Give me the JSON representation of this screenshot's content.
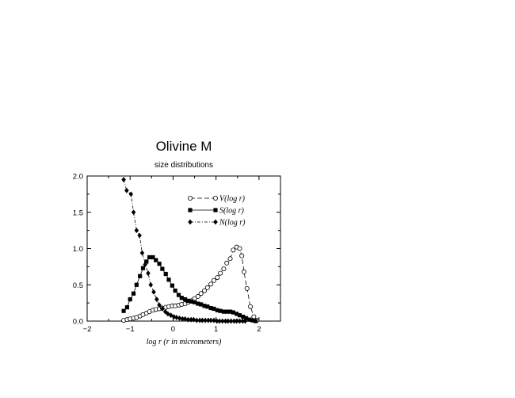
{
  "chart_data": {
    "type": "scatter",
    "title": "Olivine M",
    "subtitle": "size distributions",
    "xlabel": "log r  (r in micrometers)",
    "ylabel": "",
    "xlim": [
      -2,
      2.5
    ],
    "ylim": [
      0,
      2.0
    ],
    "xticks": [
      -2,
      -1,
      0,
      1,
      2
    ],
    "xtick_labels": [
      "−2",
      "−1",
      "0",
      "1",
      "2"
    ],
    "yticks": [
      0,
      0.5,
      1.0,
      1.5,
      2.0
    ],
    "ytick_labels": [
      "0.0",
      "0.5",
      "1.0",
      "1.5",
      "2.0"
    ],
    "legend_position": "top-right",
    "series": [
      {
        "name": "V(log r)",
        "marker": "open-circle",
        "line": "dashed",
        "x": [
          -1.15,
          -1.07,
          -1.0,
          -0.92,
          -0.85,
          -0.77,
          -0.7,
          -0.62,
          -0.55,
          -0.47,
          -0.4,
          -0.32,
          -0.25,
          -0.17,
          -0.1,
          -0.02,
          0.05,
          0.13,
          0.2,
          0.28,
          0.35,
          0.43,
          0.5,
          0.58,
          0.65,
          0.73,
          0.8,
          0.88,
          0.95,
          1.03,
          1.1,
          1.18,
          1.25,
          1.33,
          1.4,
          1.48,
          1.55,
          1.6,
          1.65,
          1.72,
          1.8,
          1.88,
          1.95
        ],
        "y": [
          0.01,
          0.02,
          0.03,
          0.04,
          0.05,
          0.07,
          0.09,
          0.11,
          0.13,
          0.15,
          0.16,
          0.17,
          0.18,
          0.19,
          0.2,
          0.21,
          0.21,
          0.22,
          0.23,
          0.24,
          0.26,
          0.28,
          0.31,
          0.34,
          0.38,
          0.42,
          0.46,
          0.51,
          0.56,
          0.6,
          0.66,
          0.72,
          0.8,
          0.86,
          0.98,
          1.02,
          1.0,
          0.9,
          0.68,
          0.45,
          0.2,
          0.06,
          0.01
        ]
      },
      {
        "name": "S(log r)",
        "marker": "filled-square",
        "line": "solid",
        "x": [
          -1.15,
          -1.07,
          -1.0,
          -0.92,
          -0.85,
          -0.77,
          -0.7,
          -0.62,
          -0.55,
          -0.47,
          -0.4,
          -0.32,
          -0.25,
          -0.17,
          -0.1,
          -0.02,
          0.05,
          0.13,
          0.2,
          0.28,
          0.35,
          0.43,
          0.5,
          0.58,
          0.65,
          0.73,
          0.8,
          0.88,
          0.95,
          1.03,
          1.1,
          1.18,
          1.25,
          1.33,
          1.4,
          1.48,
          1.55,
          1.63,
          1.7,
          1.78,
          1.85,
          1.92
        ],
        "y": [
          0.14,
          0.19,
          0.3,
          0.38,
          0.5,
          0.62,
          0.73,
          0.82,
          0.88,
          0.88,
          0.84,
          0.79,
          0.72,
          0.65,
          0.57,
          0.49,
          0.42,
          0.36,
          0.32,
          0.3,
          0.28,
          0.27,
          0.26,
          0.24,
          0.23,
          0.21,
          0.2,
          0.18,
          0.17,
          0.15,
          0.14,
          0.13,
          0.13,
          0.13,
          0.12,
          0.1,
          0.08,
          0.06,
          0.04,
          0.02,
          0.01,
          0.0
        ]
      },
      {
        "name": "N(log r)",
        "marker": "filled-diamond",
        "line": "dash-dot",
        "x": [
          -1.15,
          -1.08,
          -0.98,
          -0.92,
          -0.85,
          -0.78,
          -0.72,
          -0.65,
          -0.58,
          -0.52,
          -0.45,
          -0.38,
          -0.32,
          -0.25,
          -0.18,
          -0.12,
          -0.05,
          0.02,
          0.08,
          0.15,
          0.22,
          0.28,
          0.35,
          0.42,
          0.48,
          0.55,
          0.62,
          0.68,
          0.75,
          0.82,
          0.88,
          0.95,
          1.02,
          1.08,
          1.15,
          1.22,
          1.28,
          1.35,
          1.42,
          1.48,
          1.55,
          1.62,
          1.68
        ],
        "y": [
          1.95,
          1.8,
          1.75,
          1.5,
          1.25,
          1.18,
          0.94,
          0.78,
          0.66,
          0.5,
          0.4,
          0.3,
          0.22,
          0.17,
          0.13,
          0.1,
          0.08,
          0.06,
          0.05,
          0.04,
          0.03,
          0.03,
          0.02,
          0.02,
          0.02,
          0.01,
          0.01,
          0.01,
          0.01,
          0.01,
          0.01,
          0.01,
          0.0,
          0.0,
          0.0,
          0.0,
          0.0,
          0.0,
          0.0,
          0.0,
          0.0,
          0.0,
          0.0
        ]
      }
    ]
  }
}
